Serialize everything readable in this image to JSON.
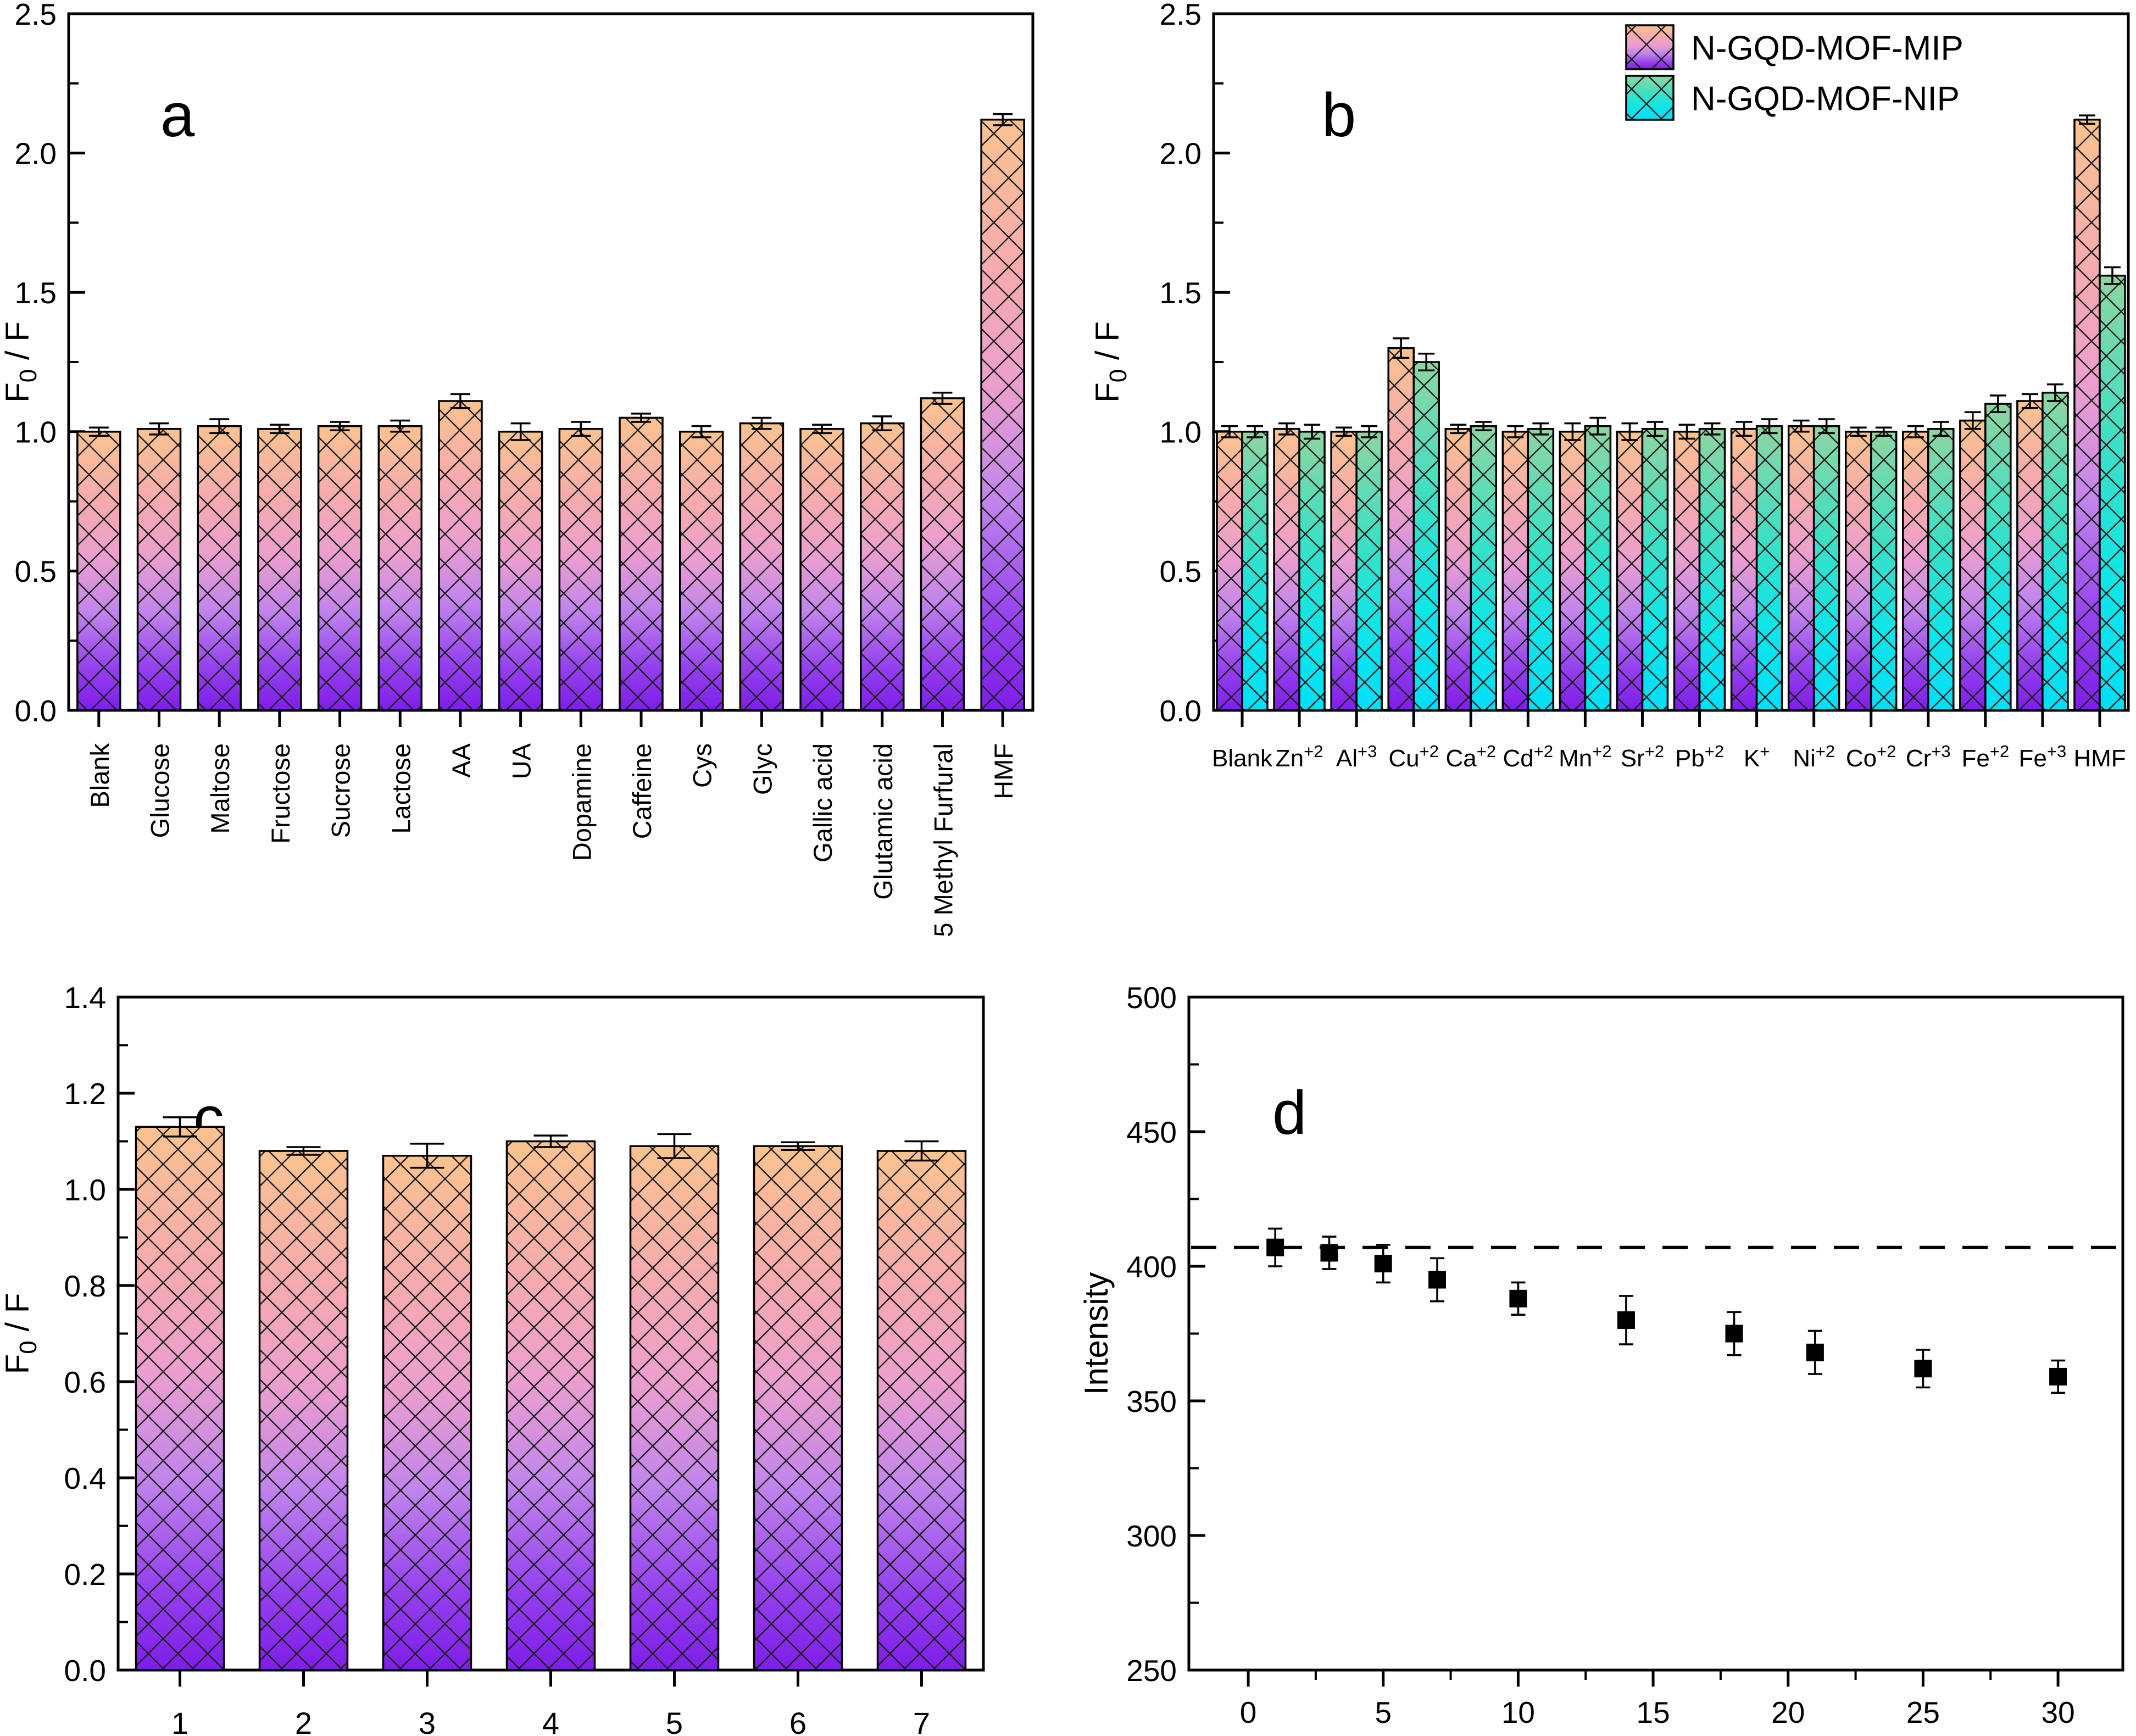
{
  "colors": {
    "axis": "#000000",
    "marker": "#000000",
    "hatch": "#1c1c1c",
    "mip_gradient": [
      [
        "0",
        "#FBC38E"
      ],
      [
        "0.25",
        "#F6ABAE"
      ],
      [
        "0.45",
        "#EC9FCE"
      ],
      [
        "0.65",
        "#C084EC"
      ],
      [
        "0.85",
        "#9440EE"
      ],
      [
        "1",
        "#7E1DE9"
      ]
    ],
    "nip_gradient": [
      [
        "0",
        "#8FD5A1"
      ],
      [
        "0.4",
        "#3BE0C6"
      ],
      [
        "0.72",
        "#0CE6EA"
      ],
      [
        "1",
        "#00DFF7"
      ]
    ]
  },
  "chart_data": [
    {
      "id": "a",
      "letter": "a",
      "type": "bar",
      "gradient": "mip",
      "y_axis": {
        "label_main": "F",
        "label_sub": "0",
        "label_rest": " / F",
        "min": 0,
        "max": 2.5,
        "major_step": 0.5,
        "minor_step": 0.25,
        "decimals": 1
      },
      "categories": [
        "Blank",
        "Glucose",
        "Maltose",
        "Fructose",
        "Sucrose",
        "Lactose",
        "AA",
        "UA",
        "Dopamine",
        "Caffeine",
        "Cys",
        "Glyc",
        "Gallic acid",
        "Glutamic acid",
        "5 Methyl Furfural",
        "HMF"
      ],
      "values": [
        1.0,
        1.01,
        1.02,
        1.01,
        1.02,
        1.02,
        1.11,
        1.0,
        1.01,
        1.05,
        1.0,
        1.03,
        1.01,
        1.03,
        1.12,
        2.12
      ],
      "errors": [
        0.015,
        0.02,
        0.025,
        0.015,
        0.015,
        0.02,
        0.025,
        0.03,
        0.025,
        0.015,
        0.02,
        0.02,
        0.015,
        0.025,
        0.02,
        0.02
      ]
    },
    {
      "id": "b",
      "letter": "b",
      "type": "grouped-bar",
      "y_axis": {
        "label_main": "F",
        "label_sub": "0",
        "label_rest": " / F",
        "min": 0,
        "max": 2.5,
        "major_step": 0.5,
        "minor_step": 0.25,
        "decimals": 1
      },
      "categories": [
        {
          "base": "Blank",
          "sup": ""
        },
        {
          "base": "Zn",
          "sup": "+2"
        },
        {
          "base": "Al",
          "sup": "+3"
        },
        {
          "base": "Cu",
          "sup": "+2"
        },
        {
          "base": "Ca",
          "sup": "+2"
        },
        {
          "base": "Cd",
          "sup": "+2"
        },
        {
          "base": "Mn",
          "sup": "+2"
        },
        {
          "base": "Sr",
          "sup": "+2"
        },
        {
          "base": "Pb",
          "sup": "+2"
        },
        {
          "base": "K",
          "sup": "+"
        },
        {
          "base": "Ni",
          "sup": "+2"
        },
        {
          "base": "Co",
          "sup": "+2"
        },
        {
          "base": "Cr",
          "sup": "+3"
        },
        {
          "base": "Fe",
          "sup": "+2"
        },
        {
          "base": "Fe",
          "sup": "+3"
        },
        {
          "base": "HMF",
          "sup": ""
        }
      ],
      "series": [
        {
          "name": "N-GQD-MOF-MIP",
          "gradient": "mip",
          "values": [
            1.0,
            1.01,
            1.0,
            1.3,
            1.01,
            1.0,
            1.0,
            1.0,
            1.0,
            1.01,
            1.02,
            1.0,
            1.0,
            1.04,
            1.11,
            2.12
          ],
          "errors": [
            0.02,
            0.02,
            0.015,
            0.035,
            0.015,
            0.02,
            0.03,
            0.03,
            0.025,
            0.025,
            0.02,
            0.015,
            0.02,
            0.03,
            0.025,
            0.015
          ]
        },
        {
          "name": "N-GQD-MOF-NIP",
          "gradient": "nip",
          "values": [
            1.0,
            1.0,
            1.0,
            1.25,
            1.02,
            1.01,
            1.02,
            1.01,
            1.01,
            1.02,
            1.02,
            1.0,
            1.01,
            1.1,
            1.14,
            1.56
          ],
          "errors": [
            0.02,
            0.025,
            0.02,
            0.03,
            0.015,
            0.02,
            0.03,
            0.025,
            0.02,
            0.025,
            0.025,
            0.015,
            0.025,
            0.03,
            0.03,
            0.03
          ]
        }
      ],
      "legend_position": "top-right"
    },
    {
      "id": "c",
      "letter": "c",
      "type": "bar",
      "gradient": "mip",
      "y_axis": {
        "label_main": "F",
        "label_sub": "0",
        "label_rest": " / F",
        "min": 0,
        "max": 1.4,
        "major_step": 0.2,
        "minor_step": 0.1,
        "decimals": 1
      },
      "categories": [
        "1",
        "2",
        "3",
        "4",
        "5",
        "6",
        "7"
      ],
      "values": [
        1.13,
        1.08,
        1.07,
        1.1,
        1.09,
        1.09,
        1.08
      ],
      "errors": [
        0.02,
        0.008,
        0.025,
        0.012,
        0.025,
        0.008,
        0.02
      ]
    },
    {
      "id": "d",
      "letter": "d",
      "type": "scatter",
      "y_axis": {
        "label_main": "Intensity",
        "label_sub": "",
        "label_rest": "",
        "min": 250,
        "max": 500,
        "major_step": 50,
        "minor_step": 25,
        "decimals": 0
      },
      "x_axis": {
        "min": -2.2,
        "max": 32.4,
        "tick_min": 0,
        "tick_max": 30,
        "major_step": 5,
        "minor_step": 2.5
      },
      "x": [
        1,
        3,
        5,
        7,
        10,
        14,
        18,
        21,
        25,
        30
      ],
      "y": [
        407,
        405,
        401,
        395,
        388,
        380,
        375,
        368,
        362,
        359
      ],
      "yerr": [
        7,
        6,
        7,
        8,
        6,
        9,
        8,
        8,
        7,
        6
      ],
      "baseline_y": 407,
      "marker": "square"
    }
  ]
}
